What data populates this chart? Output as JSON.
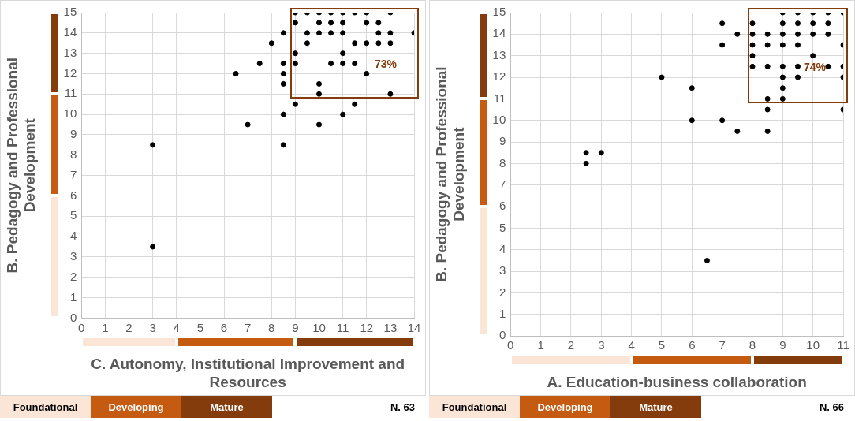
{
  "chart_data": [
    {
      "type": "scatter",
      "xlabel": "C. Autonomy, Institutional Improvement and Resources",
      "ylabel": "B. Pedagogy and Professional Development",
      "series": [
        {
          "color": "#000000",
          "x": [
            9,
            9.5,
            10,
            10.5,
            11,
            11.5,
            12,
            13,
            9,
            10,
            10.5,
            11,
            12,
            12.5,
            8.5,
            9.5,
            10,
            10.5,
            11,
            12.5,
            13,
            14,
            8,
            9.5,
            11.5,
            12,
            12.5,
            13,
            9,
            11,
            7.5,
            8.5,
            9,
            10.5,
            11,
            11.5,
            6.5,
            8.5,
            12,
            8.5,
            10,
            10,
            13,
            9,
            11.5,
            8.5,
            11,
            7,
            10,
            8.5,
            3,
            3
          ],
          "values": [
            15,
            15,
            15,
            15,
            15,
            15,
            15,
            15,
            14.5,
            14.5,
            14.5,
            14.5,
            14.5,
            14.5,
            14,
            14,
            14,
            14,
            14,
            14,
            14,
            14,
            13.5,
            13.5,
            13.5,
            13.5,
            13.5,
            13.5,
            13,
            13,
            12.5,
            12.5,
            12.5,
            12.5,
            12.5,
            12.5,
            12,
            12,
            12,
            11.5,
            11.5,
            11,
            11,
            10.5,
            10.5,
            10,
            10,
            9.5,
            9.5,
            8.5,
            8.5,
            3.5
          ]
        }
      ],
      "xlim": [
        0,
        14
      ],
      "xticks": [
        0,
        1,
        2,
        3,
        4,
        5,
        6,
        7,
        8,
        9,
        10,
        11,
        12,
        13,
        14
      ],
      "ylim": [
        0,
        15
      ],
      "yticks": [
        0,
        1,
        2,
        3,
        4,
        5,
        6,
        7,
        8,
        9,
        10,
        11,
        12,
        13,
        14,
        15
      ],
      "grid": true,
      "marker": "circle",
      "annotations": [
        "73%",
        "Foundational",
        "Developing",
        "Mature",
        "N. 63"
      ]
    },
    {
      "type": "scatter",
      "xlabel": "A. Education-business collaboration",
      "ylabel": "B. Pedagogy and Professional Development",
      "series": [
        {
          "color": "#000000",
          "x": [
            9,
            9.5,
            10,
            10.5,
            11,
            7,
            8,
            9,
            9.5,
            10,
            10.5,
            7.5,
            8,
            8.5,
            9,
            9.5,
            10,
            10.5,
            7,
            8,
            8.5,
            9,
            9.5,
            11,
            8,
            10,
            8,
            8.5,
            9,
            9.5,
            10.5,
            11,
            5,
            9,
            9.5,
            11,
            6,
            9,
            8.5,
            9,
            8.5,
            11,
            6,
            7,
            7.5,
            8.5,
            2.5,
            3,
            2.5,
            6.5
          ],
          "values": [
            15,
            15,
            15,
            15,
            15,
            14.5,
            14.5,
            14.5,
            14.5,
            14.5,
            14.5,
            14,
            14,
            14,
            14,
            14,
            14,
            14,
            13.5,
            13.5,
            13.5,
            13.5,
            13.5,
            13.5,
            13,
            13,
            12.5,
            12.5,
            12.5,
            12.5,
            12.5,
            12.5,
            12,
            12,
            12,
            12,
            11.5,
            11.5,
            11,
            11,
            10.5,
            10.5,
            10,
            10,
            9.5,
            9.5,
            8.5,
            8.5,
            8,
            3.5
          ]
        }
      ],
      "xlim": [
        0,
        11
      ],
      "xticks": [
        0,
        1,
        2,
        3,
        4,
        5,
        6,
        7,
        8,
        9,
        10,
        11
      ],
      "ylim": [
        0,
        15
      ],
      "yticks": [
        0,
        1,
        2,
        3,
        4,
        5,
        6,
        7,
        8,
        9,
        10,
        11,
        12,
        13,
        14,
        15
      ],
      "grid": true,
      "marker": "circle",
      "annotations": [
        "74%",
        "Foundational",
        "Developing",
        "Mature",
        "N. 66"
      ]
    }
  ]
}
